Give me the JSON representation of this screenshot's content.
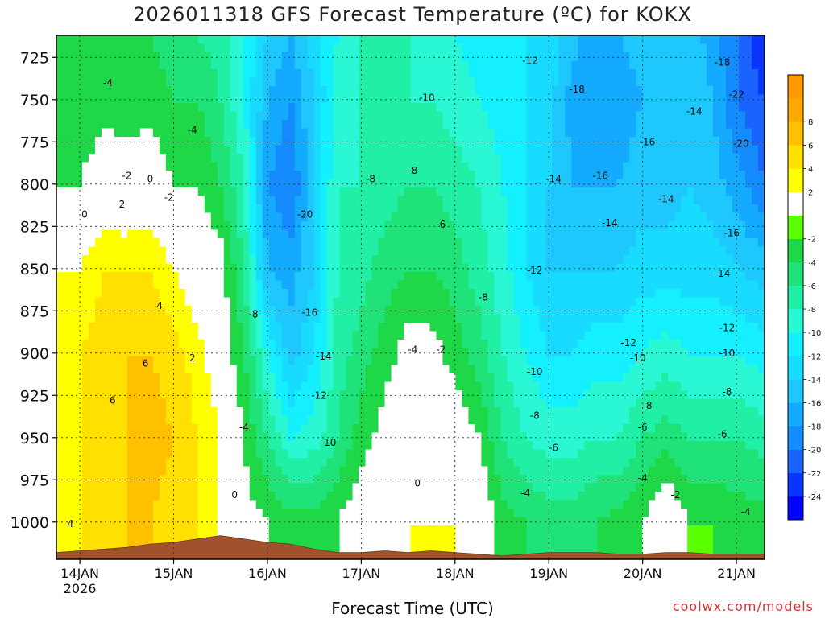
{
  "page": {
    "title": "2026011318 GFS Forecast Temperature (ºC) for KOKX",
    "credit": "coolwx.com/models"
  },
  "chart_data": {
    "type": "heatmap",
    "title": "2026011318 GFS Forecast Temperature (ºC) for KOKX",
    "xlabel": "Forecast Time (UTC)",
    "ylabel": "",
    "y_axis": {
      "reversed": true,
      "range": [
        712,
        1022
      ],
      "ticks": [
        725,
        750,
        775,
        800,
        825,
        850,
        875,
        900,
        925,
        950,
        975,
        1000
      ]
    },
    "x_axis": {
      "range_days": [
        13.75,
        21.3
      ],
      "ticks": [
        {
          "day": 14,
          "label": "14JAN",
          "sub": "2026"
        },
        {
          "day": 15,
          "label": "15JAN",
          "sub": ""
        },
        {
          "day": 16,
          "label": "16JAN",
          "sub": ""
        },
        {
          "day": 17,
          "label": "17JAN",
          "sub": ""
        },
        {
          "day": 18,
          "label": "18JAN",
          "sub": ""
        },
        {
          "day": 19,
          "label": "19JAN",
          "sub": ""
        },
        {
          "day": 20,
          "label": "20JAN",
          "sub": ""
        },
        {
          "day": 21,
          "label": "21JAN",
          "sub": ""
        }
      ]
    },
    "grid": true,
    "legend_position": "right",
    "colorbar": {
      "levels": [
        -26,
        -24,
        -22,
        -20,
        -18,
        -16,
        -14,
        -12,
        -10,
        -8,
        -6,
        -4,
        -2,
        0,
        2,
        4,
        6,
        8,
        10
      ],
      "colors": [
        "#0000ff",
        "#0a35ff",
        "#1a63ff",
        "#148cff",
        "#14aaff",
        "#1ec8ff",
        "#18dcff",
        "#14f0ff",
        "#2af7d4",
        "#22efa6",
        "#1fe278",
        "#1ed848",
        "#5aff00",
        "#ffffff",
        "#ffff00",
        "#ffe000",
        "#ffc000",
        "#ffa800",
        "#ff9900"
      ],
      "tick_labels": [
        "-24",
        "-22",
        "-20",
        "-18",
        "-16",
        "-14",
        "-12",
        "-10",
        "-8",
        "-6",
        "-4",
        "-2",
        "2",
        "4",
        "6",
        "8"
      ],
      "tick_values": [
        -24,
        -22,
        -20,
        -18,
        -16,
        -14,
        -12,
        -10,
        -8,
        -6,
        -4,
        -2,
        2,
        4,
        6,
        8
      ]
    },
    "terrain_color": "#a0522d",
    "anchor_days": [
      13.75,
      14.0,
      14.25,
      14.5,
      14.75,
      15.0,
      15.25,
      15.5,
      15.75,
      16.0,
      16.25,
      16.5,
      16.75,
      17.0,
      17.25,
      17.5,
      17.75,
      18.0,
      18.25,
      18.5,
      18.75,
      19.0,
      19.25,
      19.5,
      19.75,
      20.0,
      20.25,
      20.5,
      20.75,
      21.0,
      21.3
    ],
    "surface_pressure_hpa": [
      1018,
      1017,
      1016,
      1015,
      1013,
      1012,
      1010,
      1008,
      1010,
      1012,
      1013,
      1016,
      1018,
      1018,
      1017,
      1018,
      1017,
      1018,
      1019,
      1020,
      1019,
      1018,
      1018,
      1018,
      1019,
      1019,
      1018,
      1018,
      1019,
      1019,
      1019
    ],
    "profiles": {
      "pressure_levels_hpa": [
        712,
        750,
        800,
        850,
        900,
        950,
        1000
      ],
      "temperatures_c": [
        [
          -2,
          -4,
          -2,
          2,
          2,
          2,
          2
        ],
        [
          -3,
          -4,
          -2,
          2,
          4,
          4,
          4
        ],
        [
          -3,
          -3,
          0,
          4,
          5,
          6,
          5
        ],
        [
          -4,
          -3,
          -1,
          4,
          6,
          6,
          6
        ],
        [
          -4,
          -3,
          0,
          4,
          6,
          7,
          6
        ],
        [
          -5,
          -4,
          -2,
          2,
          5,
          6,
          5
        ],
        [
          -6,
          -4,
          -2,
          0,
          3,
          4,
          4
        ],
        [
          -7,
          -6,
          -4,
          -1,
          0,
          2,
          2
        ],
        [
          -10,
          -10,
          -8,
          -6,
          -4,
          -2,
          -1
        ],
        [
          -14,
          -16,
          -18,
          -16,
          -10,
          -6,
          -2
        ],
        [
          -16,
          -18,
          -20,
          -17,
          -15,
          -10,
          -3
        ],
        [
          -13,
          -14,
          -14,
          -14,
          -12,
          -9,
          -3
        ],
        [
          -10,
          -9,
          -8,
          -8,
          -7,
          -6,
          -2
        ],
        [
          -8,
          -8,
          -8,
          -7,
          -5,
          -3,
          0
        ],
        [
          -7,
          -7,
          -7,
          -5,
          -3,
          -1,
          1
        ],
        [
          -8,
          -8,
          -6,
          -4,
          -1,
          0,
          2
        ],
        [
          -9,
          -8,
          -6,
          -4,
          -1,
          0,
          2
        ],
        [
          -10,
          -9,
          -7,
          -5,
          -3,
          0,
          2
        ],
        [
          -11,
          -10,
          -8,
          -7,
          -5,
          -2,
          1
        ],
        [
          -11,
          -11,
          -10,
          -9,
          -8,
          -6,
          -3
        ],
        [
          -12,
          -12,
          -12,
          -12,
          -10,
          -8,
          -4
        ],
        [
          -13,
          -13,
          -14,
          -14,
          -12,
          -9,
          -5
        ],
        [
          -15,
          -17,
          -16,
          -14,
          -12,
          -9,
          -5
        ],
        [
          -18,
          -18,
          -16,
          -14,
          -11,
          -8,
          -4
        ],
        [
          -16,
          -17,
          -16,
          -14,
          -11,
          -8,
          -3
        ],
        [
          -15,
          -16,
          -15,
          -13,
          -10,
          -6,
          -2
        ],
        [
          -14,
          -15,
          -15,
          -13,
          -9,
          -5,
          1
        ],
        [
          -15,
          -14,
          -14,
          -13,
          -10,
          -6,
          -2
        ],
        [
          -17,
          -16,
          -15,
          -13,
          -10,
          -6,
          -2
        ],
        [
          -20,
          -20,
          -17,
          -14,
          -10,
          -6,
          -3
        ],
        [
          -24,
          -22,
          -20,
          -15,
          -11,
          -7,
          -3
        ]
      ]
    },
    "contour_labels": [
      {
        "text": "-4",
        "day": 14.3,
        "p": 740
      },
      {
        "text": "-2",
        "day": 14.5,
        "p": 795
      },
      {
        "text": "0",
        "day": 14.05,
        "p": 818
      },
      {
        "text": "2",
        "day": 14.45,
        "p": 812
      },
      {
        "text": "0",
        "day": 14.75,
        "p": 797
      },
      {
        "text": "-2",
        "day": 14.95,
        "p": 808
      },
      {
        "text": "-4",
        "day": 15.2,
        "p": 768
      },
      {
        "text": "4",
        "day": 14.85,
        "p": 872
      },
      {
        "text": "6",
        "day": 14.7,
        "p": 906
      },
      {
        "text": "6",
        "day": 14.35,
        "p": 928
      },
      {
        "text": "2",
        "day": 15.2,
        "p": 903
      },
      {
        "text": "4",
        "day": 13.9,
        "p": 1001
      },
      {
        "text": "0",
        "day": 15.65,
        "p": 984
      },
      {
        "text": "-4",
        "day": 15.75,
        "p": 944
      },
      {
        "text": "-8",
        "day": 15.85,
        "p": 877
      },
      {
        "text": "-20",
        "day": 16.4,
        "p": 818
      },
      {
        "text": "-16",
        "day": 16.45,
        "p": 876
      },
      {
        "text": "-14",
        "day": 16.6,
        "p": 902
      },
      {
        "text": "-12",
        "day": 16.55,
        "p": 925
      },
      {
        "text": "-10",
        "day": 16.65,
        "p": 953
      },
      {
        "text": "-8",
        "day": 17.1,
        "p": 797
      },
      {
        "text": "-8",
        "day": 17.55,
        "p": 792
      },
      {
        "text": "-6",
        "day": 17.85,
        "p": 824
      },
      {
        "text": "-10",
        "day": 17.7,
        "p": 749
      },
      {
        "text": "-8",
        "day": 18.3,
        "p": 867
      },
      {
        "text": "-4",
        "day": 17.55,
        "p": 898
      },
      {
        "text": "-2",
        "day": 17.85,
        "p": 898
      },
      {
        "text": "0",
        "day": 17.6,
        "p": 977
      },
      {
        "text": "-12",
        "day": 18.8,
        "p": 727
      },
      {
        "text": "-18",
        "day": 19.3,
        "p": 744
      },
      {
        "text": "-14",
        "day": 19.05,
        "p": 797
      },
      {
        "text": "-12",
        "day": 18.85,
        "p": 851
      },
      {
        "text": "-16",
        "day": 19.55,
        "p": 795
      },
      {
        "text": "-14",
        "day": 19.65,
        "p": 823
      },
      {
        "text": "-16",
        "day": 20.05,
        "p": 775
      },
      {
        "text": "-14",
        "day": 20.25,
        "p": 809
      },
      {
        "text": "-14",
        "day": 20.55,
        "p": 757
      },
      {
        "text": "-18",
        "day": 20.85,
        "p": 728
      },
      {
        "text": "-22",
        "day": 21.0,
        "p": 747
      },
      {
        "text": "-20",
        "day": 21.05,
        "p": 776
      },
      {
        "text": "-16",
        "day": 20.95,
        "p": 829
      },
      {
        "text": "-14",
        "day": 20.85,
        "p": 853
      },
      {
        "text": "-12",
        "day": 20.9,
        "p": 885
      },
      {
        "text": "-10",
        "day": 20.9,
        "p": 900
      },
      {
        "text": "-8",
        "day": 20.9,
        "p": 923
      },
      {
        "text": "-6",
        "day": 20.85,
        "p": 948
      },
      {
        "text": "-4",
        "day": 21.1,
        "p": 994
      },
      {
        "text": "-12",
        "day": 19.85,
        "p": 894
      },
      {
        "text": "-10",
        "day": 19.95,
        "p": 903
      },
      {
        "text": "-10",
        "day": 18.85,
        "p": 911
      },
      {
        "text": "-8",
        "day": 18.85,
        "p": 937
      },
      {
        "text": "-8",
        "day": 20.05,
        "p": 931
      },
      {
        "text": "-6",
        "day": 19.05,
        "p": 956
      },
      {
        "text": "-6",
        "day": 20.0,
        "p": 944
      },
      {
        "text": "-4",
        "day": 18.75,
        "p": 983
      },
      {
        "text": "-4",
        "day": 20.0,
        "p": 974
      },
      {
        "text": "-2",
        "day": 20.35,
        "p": 984
      }
    ]
  }
}
